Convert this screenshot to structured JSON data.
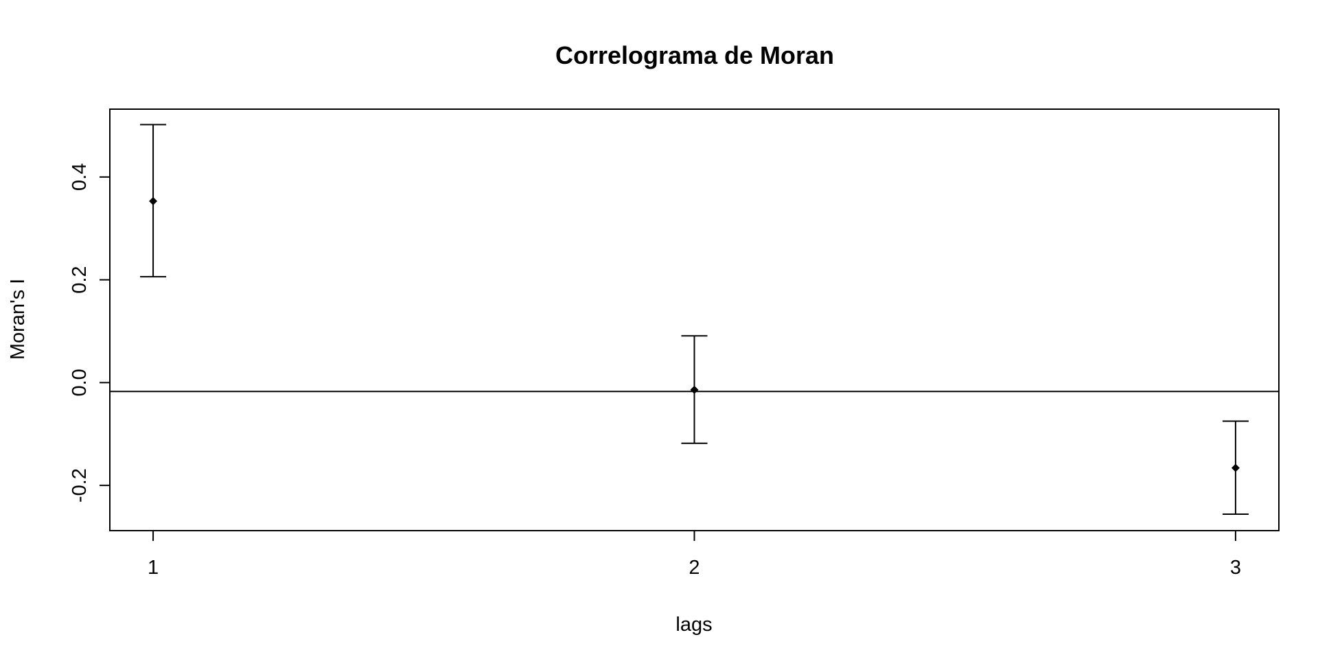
{
  "chart_data": {
    "type": "scatter",
    "title": "Correlograma de Moran",
    "xlabel": "lags",
    "ylabel": "Moran's  I",
    "x_ticks": [
      1,
      2,
      3
    ],
    "y_ticks": [
      "-0.2",
      "0.0",
      "0.2",
      "0.4"
    ],
    "xlim": [
      0.92,
      3.08
    ],
    "ylim": [
      -0.288,
      0.532
    ],
    "reference_line": -0.0172,
    "points": [
      {
        "lag": 1,
        "estimate": 0.353,
        "lower": 0.206,
        "upper": 0.502
      },
      {
        "lag": 2,
        "estimate": -0.014,
        "lower": -0.118,
        "upper": 0.091
      },
      {
        "lag": 3,
        "estimate": -0.166,
        "lower": -0.256,
        "upper": -0.075
      }
    ],
    "grid": false,
    "legend": "none",
    "colors": {
      "marks": "#000000",
      "background": "#ffffff"
    }
  }
}
